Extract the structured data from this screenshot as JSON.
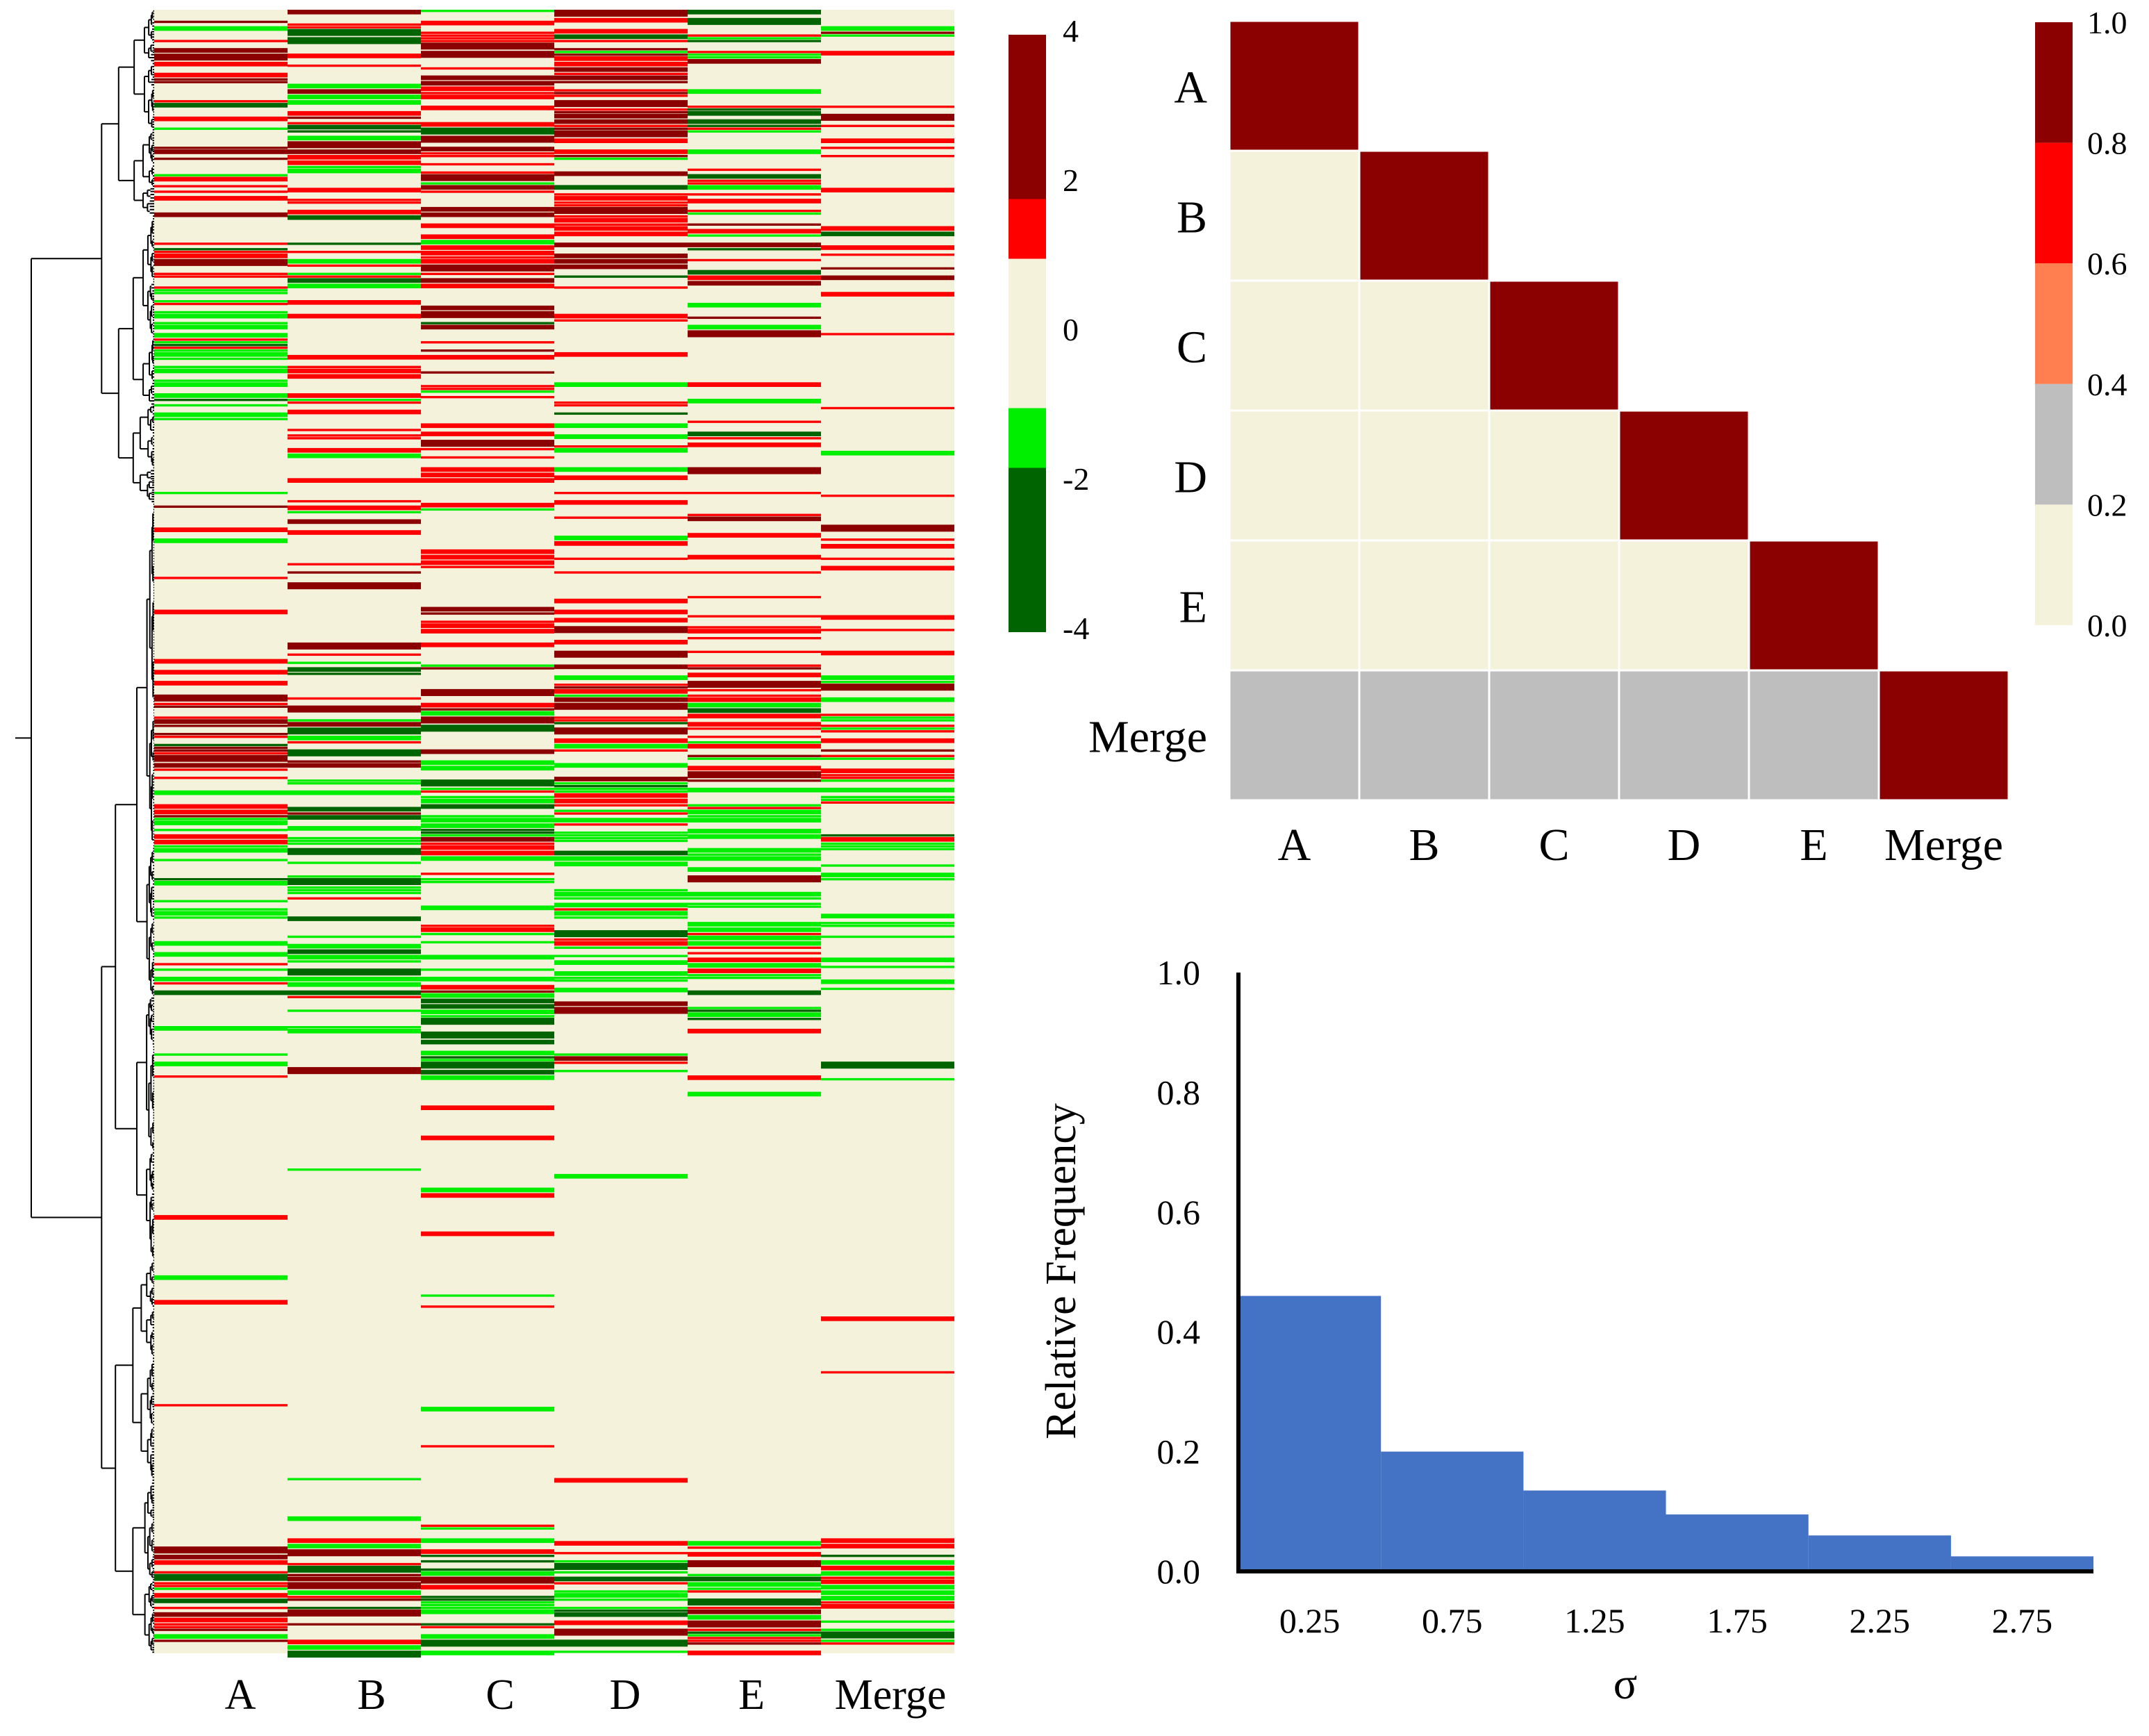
{
  "heatmap": {
    "type": "heatmap",
    "columns": [
      "A",
      "B",
      "C",
      "D",
      "E",
      "Merge"
    ],
    "colorbar": {
      "ticks": [
        "4",
        "2",
        "0",
        "-2",
        "-4"
      ],
      "bins": [
        {
          "from": 4,
          "to": 1.8,
          "color": "#8b0000"
        },
        {
          "from": 1.8,
          "to": 1.0,
          "color": "#ff0000"
        },
        {
          "from": 1.0,
          "to": -1.0,
          "color": "#f5f2dc"
        },
        {
          "from": -1.0,
          "to": -1.8,
          "color": "#00ee00"
        },
        {
          "from": -1.8,
          "to": -4,
          "color": "#006400"
        }
      ]
    },
    "colors": {
      "high": "#8b0000",
      "up": "#ff0000",
      "neutral": "#f5f2dc",
      "down": "#00ee00",
      "low": "#006400"
    },
    "row_count": 600
  },
  "correlation": {
    "type": "heatmap",
    "labels": [
      "A",
      "B",
      "C",
      "D",
      "E",
      "Merge"
    ],
    "matrix": [
      [
        1.0,
        null,
        null,
        null,
        null,
        null
      ],
      [
        0.1,
        1.0,
        null,
        null,
        null,
        null
      ],
      [
        0.1,
        0.1,
        1.0,
        null,
        null,
        null
      ],
      [
        0.1,
        0.1,
        0.1,
        1.0,
        null,
        null
      ],
      [
        0.1,
        0.1,
        0.1,
        0.1,
        1.0,
        null
      ],
      [
        0.3,
        0.3,
        0.3,
        0.3,
        0.3,
        1.0
      ]
    ],
    "colorbar": {
      "ticks": [
        "1.0",
        "0.8",
        "0.6",
        "0.4",
        "0.2",
        "0.0"
      ],
      "bins": [
        {
          "from": 0.8,
          "to": 1.0,
          "color": "#8b0000"
        },
        {
          "from": 0.6,
          "to": 0.8,
          "color": "#ff0000"
        },
        {
          "from": 0.4,
          "to": 0.6,
          "color": "#ff7f50"
        },
        {
          "from": 0.2,
          "to": 0.4,
          "color": "#bebebe"
        },
        {
          "from": 0.0,
          "to": 0.2,
          "color": "#f5f2dc"
        }
      ]
    }
  },
  "chart_data": {
    "type": "bar",
    "categories": [
      "0.25",
      "0.75",
      "1.25",
      "1.75",
      "2.25",
      "2.75"
    ],
    "values": [
      0.46,
      0.2,
      0.135,
      0.095,
      0.06,
      0.025
    ],
    "title": "",
    "xlabel": "σ",
    "ylabel": "Relative Frequency",
    "ylim": [
      0,
      1.0
    ],
    "yticks": [
      "0.0",
      "0.2",
      "0.4",
      "0.6",
      "0.8",
      "1.0"
    ],
    "bar_color": "#4472c4"
  }
}
